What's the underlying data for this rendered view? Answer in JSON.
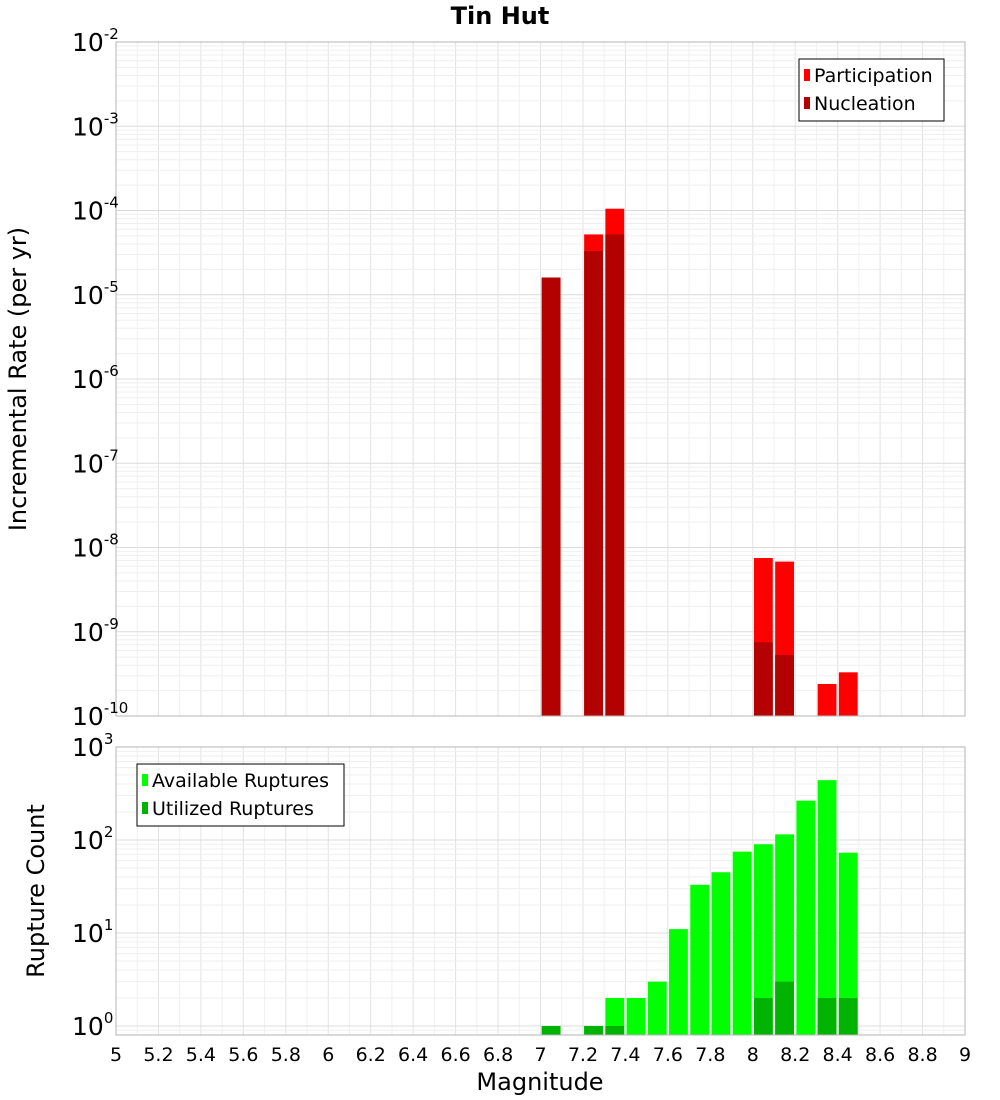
{
  "chart_data": [
    {
      "type": "bar",
      "panel": "top",
      "title": "Tin Hut",
      "xlabel": "",
      "ylabel": "Incremental Rate (per yr)",
      "yscale": "log",
      "ylim": [
        1e-10,
        0.01
      ],
      "xlim": [
        5,
        9
      ],
      "grid": true,
      "legend_placement": "top-right",
      "bin_width": 0.1,
      "y_ticks": [
        {
          "base": "10",
          "exp": "-2",
          "value": 0.01
        },
        {
          "base": "10",
          "exp": "-3",
          "value": 0.001
        },
        {
          "base": "10",
          "exp": "-4",
          "value": 0.0001
        },
        {
          "base": "10",
          "exp": "-5",
          "value": 1e-05
        },
        {
          "base": "10",
          "exp": "-6",
          "value": 1e-06
        },
        {
          "base": "10",
          "exp": "-7",
          "value": 1e-07
        },
        {
          "base": "10",
          "exp": "-8",
          "value": 1e-08
        },
        {
          "base": "10",
          "exp": "-9",
          "value": 1e-09
        },
        {
          "base": "10",
          "exp": "-10",
          "value": 1e-10
        }
      ],
      "series": [
        {
          "name": "Participation",
          "color": "#ff0000",
          "points": [
            {
              "x": 7.05,
              "y": 1.6e-05
            },
            {
              "x": 7.25,
              "y": 5.2e-05
            },
            {
              "x": 7.35,
              "y": 0.000105
            },
            {
              "x": 8.05,
              "y": 7.5e-09
            },
            {
              "x": 8.15,
              "y": 6.8e-09
            },
            {
              "x": 8.35,
              "y": 2.4e-10
            },
            {
              "x": 8.45,
              "y": 3.3e-10
            }
          ]
        },
        {
          "name": "Nucleation",
          "color": "#b30000",
          "points": [
            {
              "x": 7.05,
              "y": 1.6e-05
            },
            {
              "x": 7.25,
              "y": 3.3e-05
            },
            {
              "x": 7.35,
              "y": 5.2e-05
            },
            {
              "x": 8.05,
              "y": 7.5e-10
            },
            {
              "x": 8.15,
              "y": 5.3e-10
            }
          ]
        }
      ]
    },
    {
      "type": "bar",
      "panel": "bottom",
      "title": "",
      "xlabel": "Magnitude",
      "ylabel": "Rupture Count",
      "yscale": "log",
      "ylim": [
        0.8,
        1000
      ],
      "xlim": [
        5,
        9
      ],
      "grid": true,
      "legend_placement": "top-left",
      "bin_width": 0.1,
      "x_ticks": [
        "5",
        "5.2",
        "5.4",
        "5.6",
        "5.8",
        "6",
        "6.2",
        "6.4",
        "6.6",
        "6.8",
        "7",
        "7.2",
        "7.4",
        "7.6",
        "7.8",
        "8",
        "8.2",
        "8.4",
        "8.6",
        "8.8",
        "9"
      ],
      "y_ticks": [
        {
          "base": "10",
          "exp": "3",
          "value": 1000
        },
        {
          "base": "10",
          "exp": "2",
          "value": 100
        },
        {
          "base": "10",
          "exp": "1",
          "value": 10
        },
        {
          "base": "10",
          "exp": "0",
          "value": 1
        }
      ],
      "series": [
        {
          "name": "Available Ruptures",
          "color": "#00ff00",
          "points": [
            {
              "x": 7.05,
              "y": 1
            },
            {
              "x": 7.25,
              "y": 1
            },
            {
              "x": 7.35,
              "y": 2
            },
            {
              "x": 7.45,
              "y": 2
            },
            {
              "x": 7.55,
              "y": 3
            },
            {
              "x": 7.65,
              "y": 11
            },
            {
              "x": 7.75,
              "y": 33
            },
            {
              "x": 7.85,
              "y": 45
            },
            {
              "x": 7.95,
              "y": 75
            },
            {
              "x": 8.05,
              "y": 90
            },
            {
              "x": 8.15,
              "y": 115
            },
            {
              "x": 8.25,
              "y": 265
            },
            {
              "x": 8.35,
              "y": 440
            },
            {
              "x": 8.45,
              "y": 73
            }
          ]
        },
        {
          "name": "Utilized Ruptures",
          "color": "#00b300",
          "points": [
            {
              "x": 7.05,
              "y": 1
            },
            {
              "x": 7.25,
              "y": 1
            },
            {
              "x": 7.35,
              "y": 1
            },
            {
              "x": 8.05,
              "y": 2
            },
            {
              "x": 8.15,
              "y": 3
            },
            {
              "x": 8.35,
              "y": 2
            },
            {
              "x": 8.45,
              "y": 2
            }
          ]
        }
      ]
    }
  ]
}
